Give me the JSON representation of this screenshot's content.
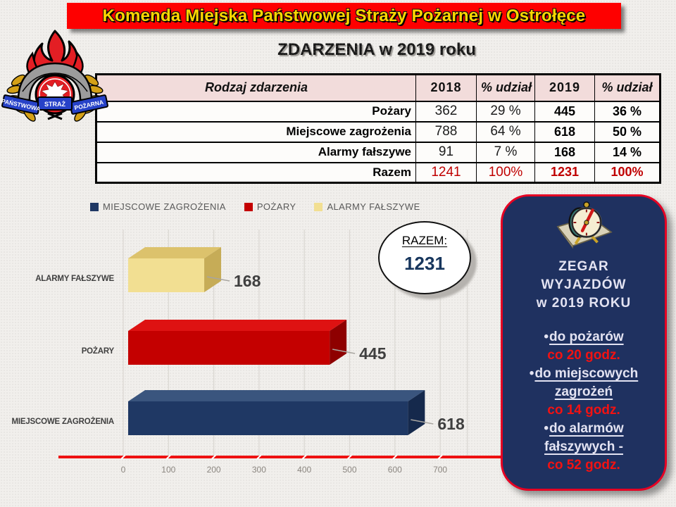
{
  "header": {
    "title": "Komenda Miejska Państwowej Straży Pożarnej w Ostrołęce",
    "bg_color": "#FE0000",
    "text_color": "#FFD700"
  },
  "page_title": "ZDARZENIA w 2019 roku",
  "logo": {
    "ribbon_left": "PAŃSTWOWA",
    "ribbon_center": "STRAŻ",
    "ribbon_right": "POŻARNA"
  },
  "table": {
    "header_bg": "#F2DCDB",
    "total_color": "#C00000",
    "headers": {
      "col0": "Rodzaj zdarzenia",
      "col1": "2018",
      "col2": "% udział",
      "col3": "2019",
      "col4": "% udział"
    },
    "rows": [
      {
        "label": "Pożary",
        "v2018": "362",
        "p2018": "29 %",
        "v2019": "445",
        "p2019": "36 %"
      },
      {
        "label": "Miejscowe zagrożenia",
        "v2018": "788",
        "p2018": "64 %",
        "v2019": "618",
        "p2019": "50 %"
      },
      {
        "label": "Alarmy fałszywe",
        "v2018": "91",
        "p2018": "7 %",
        "v2019": "168",
        "p2019": "14 %"
      },
      {
        "label": "Razem",
        "v2018": "1241",
        "p2018": "100%",
        "v2019": "1231",
        "p2019": "100%"
      }
    ]
  },
  "chart_data": {
    "type": "bar",
    "orientation": "horizontal",
    "style": "3d",
    "categories": [
      "ALARMY FAŁSZYWE",
      "POŻARY",
      "MIEJSCOWE ZAGROŻENIA"
    ],
    "values": [
      168,
      445,
      618
    ],
    "bar_colors": [
      "#F2DF92",
      "#C40000",
      "#1F3864"
    ],
    "bar_colors_top": [
      "#DCC26C",
      "#DE1212",
      "#3A557E"
    ],
    "bar_colors_side": [
      "#C6AC57",
      "#8E0000",
      "#15294C"
    ],
    "legend": [
      {
        "label": "MIEJSCOWE ZAGROŻENIA",
        "color": "#1F3864"
      },
      {
        "label": "POŻARY",
        "color": "#C40000"
      },
      {
        "label": "ALARMY FAŁSZYWE",
        "color": "#F2DF92"
      }
    ],
    "legend_position": "top",
    "grid": true,
    "xlim": [
      0,
      760
    ],
    "xticks": [
      0,
      100,
      200,
      300,
      400,
      500,
      600,
      700
    ],
    "axis_color": "#EE1111",
    "xlabel": "",
    "ylabel": ""
  },
  "razem_badge": {
    "label": "RAZEM:",
    "value": "1231",
    "value_color": "#17365D"
  },
  "side_panel": {
    "bg_color": "#1F3160",
    "border_color": "#E60023",
    "value_color": "#F21212",
    "clock_icon": "alarm-clock-on-book",
    "title_lines": [
      "ZEGAR",
      "WYJAZDÓW",
      "w 2019 ROKU"
    ],
    "items": [
      {
        "label": "do pożarów",
        "value": "co 20 godz."
      },
      {
        "label": "do miejscowych zagrożeń",
        "value": "co 14 godz."
      },
      {
        "label": "do alarmów fałszywych -",
        "value": "co 52 godz."
      }
    ]
  }
}
